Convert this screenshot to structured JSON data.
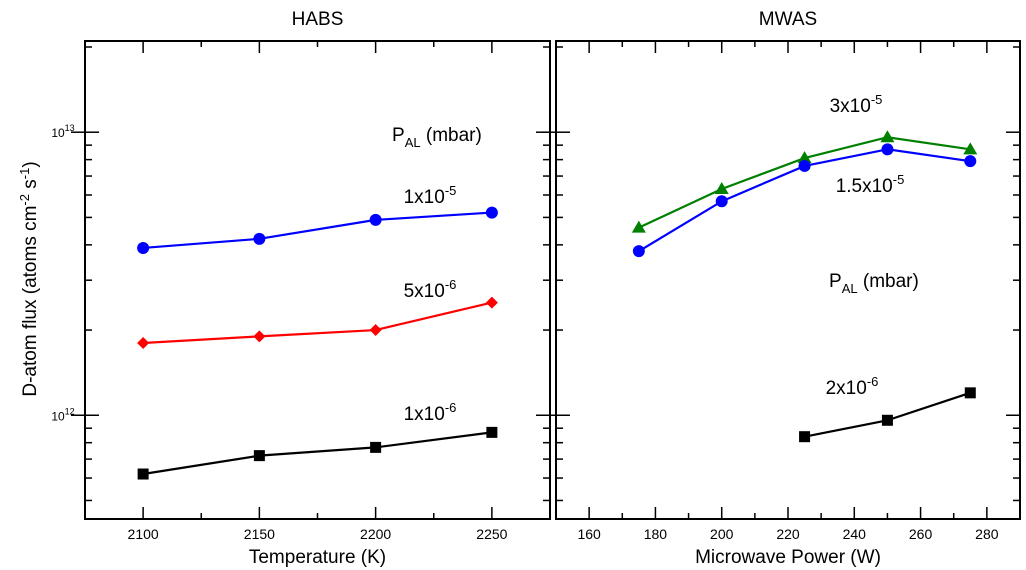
{
  "chart_data": [
    {
      "type": "line",
      "title": "HABS",
      "xlabel": "Temperature (K)",
      "ylabel": "D-atom flux (atoms cm⁻² s⁻¹)",
      "xlim": [
        2075,
        2275
      ],
      "ylim": [
        430000000000.0,
        21000000000000.0
      ],
      "yscale": "log",
      "xticks": [
        2100,
        2150,
        2200,
        2250
      ],
      "yticks": [
        {
          "value": 1000000000000.0,
          "base": "10",
          "exp": "12"
        },
        {
          "value": 10000000000000.0,
          "base": "10",
          "exp": "13"
        }
      ],
      "legend_header": {
        "base": "P",
        "sub": "AL",
        "rest": " (mbar)"
      },
      "series": [
        {
          "name": "1x10-5",
          "label_base": "1x10",
          "label_exp": "-5",
          "color": "#0000ff",
          "marker": "circle",
          "x": [
            2100,
            2150,
            2200,
            2250
          ],
          "y": [
            3900000000000.0,
            4200000000000.0,
            4900000000000.0,
            5200000000000.0
          ]
        },
        {
          "name": "5x10-6",
          "label_base": "5x10",
          "label_exp": "-6",
          "color": "#ff0000",
          "marker": "diamond",
          "x": [
            2100,
            2150,
            2200,
            2250
          ],
          "y": [
            1800000000000.0,
            1900000000000.0,
            2000000000000.0,
            2500000000000.0
          ]
        },
        {
          "name": "1x10-6",
          "label_base": "1x10",
          "label_exp": "-6",
          "color": "#000000",
          "marker": "square",
          "x": [
            2100,
            2150,
            2200,
            2250
          ],
          "y": [
            620000000000.0,
            720000000000.0,
            770000000000.0,
            870000000000.0
          ]
        }
      ]
    },
    {
      "type": "line",
      "title": "MWAS",
      "xlabel": "Microwave Power (W)",
      "ylabel": "",
      "xlim": [
        150,
        290
      ],
      "ylim": [
        430000000000.0,
        21000000000000.0
      ],
      "yscale": "log",
      "xticks": [
        160,
        180,
        200,
        220,
        240,
        260,
        280
      ],
      "yticks": [],
      "legend_header": {
        "base": "P",
        "sub": "AL",
        "rest": " (mbar)"
      },
      "series": [
        {
          "name": "3x10-5",
          "label_base": "3x10",
          "label_exp": "-5",
          "color": "#008000",
          "marker": "triangle",
          "x": [
            175,
            200,
            225,
            250,
            275
          ],
          "y": [
            4600000000000.0,
            6300000000000.0,
            8100000000000.0,
            9600000000000.0,
            8700000000000.0
          ]
        },
        {
          "name": "1.5x10-5",
          "label_base": "1.5x10",
          "label_exp": "-5",
          "color": "#0000ff",
          "marker": "circle",
          "x": [
            175,
            200,
            225,
            250,
            275
          ],
          "y": [
            3800000000000.0,
            5700000000000.0,
            7600000000000.0,
            8700000000000.0,
            7900000000000.0
          ]
        },
        {
          "name": "2x10-6",
          "label_base": "2x10",
          "label_exp": "-6",
          "color": "#000000",
          "marker": "square",
          "x": [
            225,
            250,
            275
          ],
          "y": [
            840000000000.0,
            960000000000.0,
            1200000000000.0
          ]
        }
      ]
    }
  ]
}
